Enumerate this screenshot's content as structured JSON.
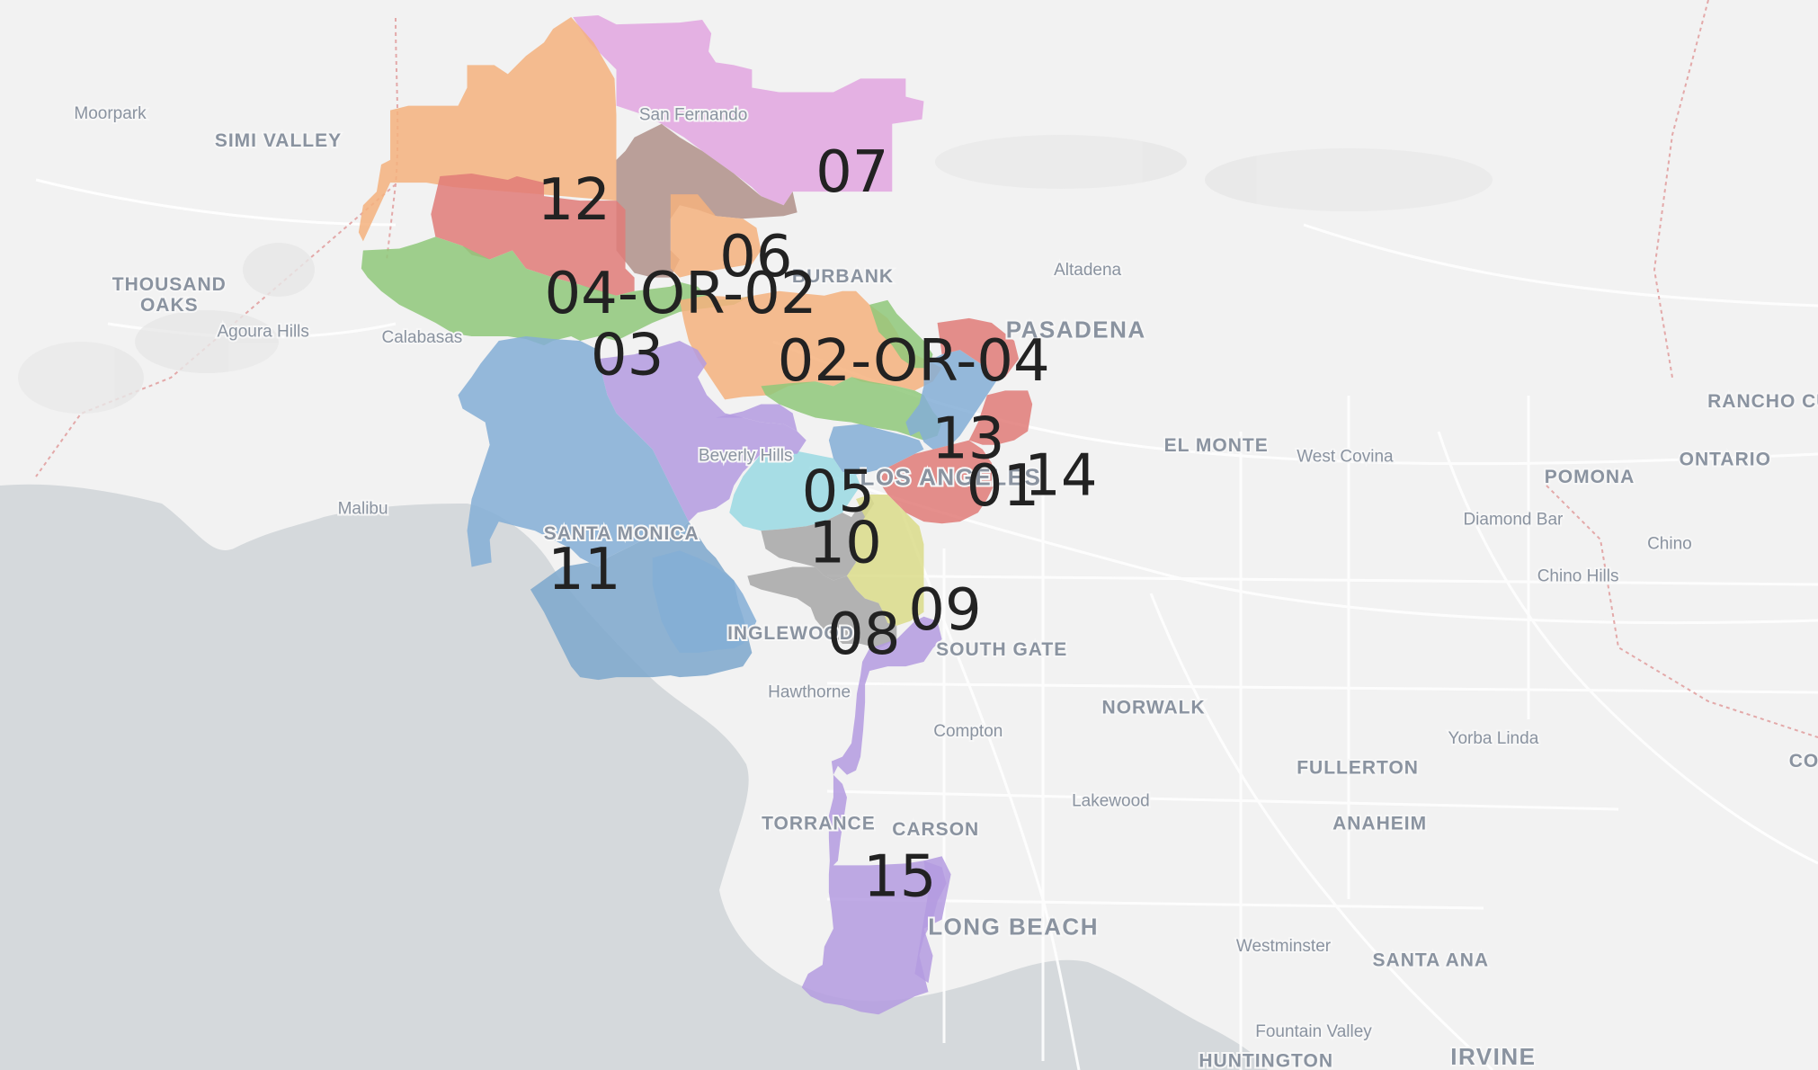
{
  "map": {
    "land_color": "#f2f2f2",
    "water_color": "#d5d9dc",
    "road_color": "#ffffff",
    "boundary_color": "#e3a9a9",
    "place_label_color": "#8a93a0",
    "district_label_color": "#222222"
  },
  "places": [
    {
      "id": "moorpark",
      "label": "Moorpark",
      "size": "small"
    },
    {
      "id": "simi-valley",
      "label": "SIMI VALLEY",
      "size": "mid"
    },
    {
      "id": "san-fernando",
      "label": "San Fernando",
      "size": "small"
    },
    {
      "id": "burbank",
      "label": "BURBANK",
      "size": "mid"
    },
    {
      "id": "altadena",
      "label": "Altadena",
      "size": "small"
    },
    {
      "id": "thousand-oaks-1",
      "label": "THOUSAND",
      "size": "mid"
    },
    {
      "id": "thousand-oaks-2",
      "label": "OAKS",
      "size": "mid"
    },
    {
      "id": "agoura-hills",
      "label": "Agoura Hills",
      "size": "small"
    },
    {
      "id": "calabasas",
      "label": "Calabasas",
      "size": "small"
    },
    {
      "id": "pasadena",
      "label": "PASADENA",
      "size": "big"
    },
    {
      "id": "rancho-cu",
      "label": "RANCHO CU",
      "size": "mid"
    },
    {
      "id": "el-monte",
      "label": "EL MONTE",
      "size": "mid"
    },
    {
      "id": "west-covina",
      "label": "West Covina",
      "size": "small"
    },
    {
      "id": "pomona",
      "label": "POMONA",
      "size": "mid"
    },
    {
      "id": "ontario",
      "label": "ONTARIO",
      "size": "mid"
    },
    {
      "id": "beverly-hills",
      "label": "Beverly Hills",
      "size": "small"
    },
    {
      "id": "los-angeles",
      "label": "LOS ANGELES",
      "size": "big"
    },
    {
      "id": "malibu",
      "label": "Malibu",
      "size": "small"
    },
    {
      "id": "diamond-bar",
      "label": "Diamond Bar",
      "size": "small"
    },
    {
      "id": "chino",
      "label": "Chino",
      "size": "small"
    },
    {
      "id": "chino-hills",
      "label": "Chino Hills",
      "size": "small"
    },
    {
      "id": "santa-monica",
      "label": "SANTA MONICA",
      "size": "mid"
    },
    {
      "id": "inglewood",
      "label": "INGLEWOOD",
      "size": "mid"
    },
    {
      "id": "south-gate",
      "label": "SOUTH GATE",
      "size": "mid"
    },
    {
      "id": "hawthorne",
      "label": "Hawthorne",
      "size": "small"
    },
    {
      "id": "norwalk",
      "label": "NORWALK",
      "size": "mid"
    },
    {
      "id": "compton",
      "label": "Compton",
      "size": "small"
    },
    {
      "id": "yorba-linda",
      "label": "Yorba Linda",
      "size": "small"
    },
    {
      "id": "co",
      "label": "CO",
      "size": "mid"
    },
    {
      "id": "fullerton",
      "label": "FULLERTON",
      "size": "mid"
    },
    {
      "id": "lakewood",
      "label": "Lakewood",
      "size": "small"
    },
    {
      "id": "torrance",
      "label": "TORRANCE",
      "size": "mid"
    },
    {
      "id": "carson",
      "label": "CARSON",
      "size": "mid"
    },
    {
      "id": "anaheim",
      "label": "ANAHEIM",
      "size": "mid"
    },
    {
      "id": "long-beach",
      "label": "LONG BEACH",
      "size": "big"
    },
    {
      "id": "westminster",
      "label": "Westminster",
      "size": "small"
    },
    {
      "id": "santa-ana",
      "label": "SANTA ANA",
      "size": "mid"
    },
    {
      "id": "fountain-valley",
      "label": "Fountain Valley",
      "size": "small"
    },
    {
      "id": "huntington",
      "label": "HUNTINGTON",
      "size": "mid"
    },
    {
      "id": "irvine",
      "label": "IRVINE",
      "size": "big"
    }
  ],
  "districts": [
    {
      "id": "d07",
      "label": "07",
      "color": "#e2a6e0"
    },
    {
      "id": "d12",
      "label": "12",
      "color": "#f4b17e"
    },
    {
      "id": "d06",
      "label": "06",
      "color": "#b09189"
    },
    {
      "id": "d04-or-02",
      "label": "04-OR-02",
      "color": "#e07b78"
    },
    {
      "id": "d03",
      "label": "03",
      "color": "#8fc87a"
    },
    {
      "id": "d02-or-04",
      "label": "02-OR-04",
      "color": "#f4b17e"
    },
    {
      "id": "d13",
      "label": "13",
      "color": "#84aed6"
    },
    {
      "id": "d14",
      "label": "14",
      "color": "#e07b78"
    },
    {
      "id": "d01",
      "label": "01",
      "color": "#e07b78"
    },
    {
      "id": "d05",
      "label": "05",
      "color": "#9ad9e3"
    },
    {
      "id": "d10",
      "label": "10",
      "color": "#a7a7a7"
    },
    {
      "id": "d11",
      "label": "11",
      "color": "#84aed6"
    },
    {
      "id": "d09",
      "label": "09",
      "color": "#dbdc8a"
    },
    {
      "id": "d08",
      "label": "08",
      "color": "#a7a7a7"
    },
    {
      "id": "d15",
      "label": "15",
      "color": "#b49be0"
    },
    {
      "id": "d05b",
      "label": "",
      "color": "#b49be0"
    }
  ]
}
